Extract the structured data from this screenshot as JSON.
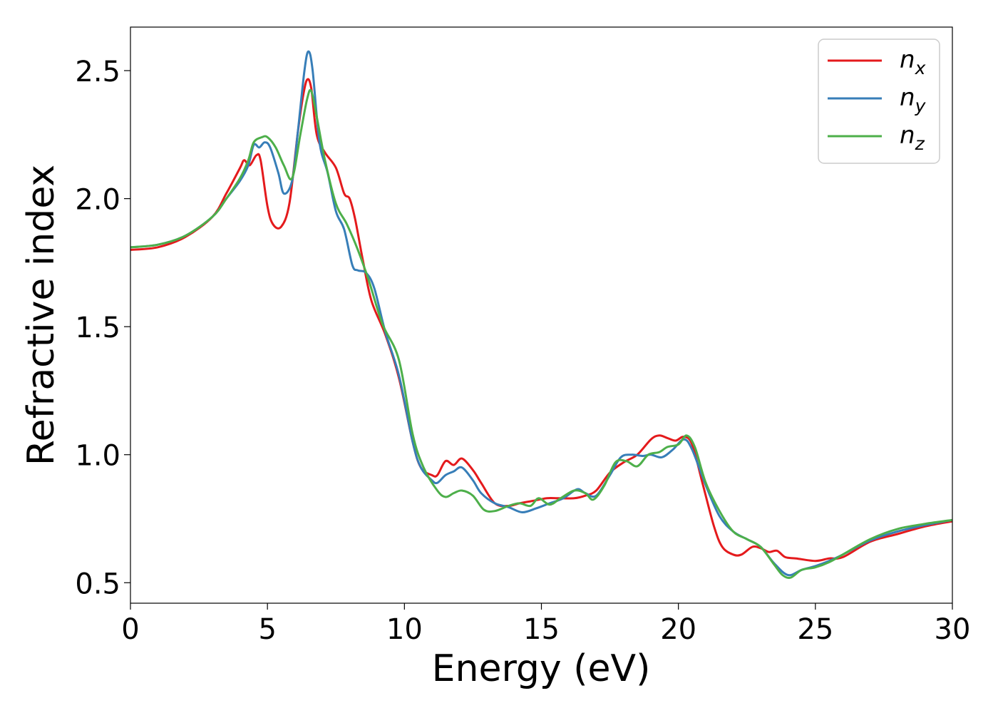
{
  "chart_data": {
    "type": "line",
    "xlabel": "Energy (eV)",
    "ylabel": "Refractive index",
    "xlim": [
      0,
      30
    ],
    "ylim": [
      0.42,
      2.67
    ],
    "xticks": [
      0,
      5,
      10,
      15,
      20,
      25,
      30
    ],
    "yticks": [
      0.5,
      1.0,
      1.5,
      2.0,
      2.5
    ],
    "xtick_labels": [
      "0",
      "5",
      "10",
      "15",
      "20",
      "25",
      "30"
    ],
    "ytick_labels": [
      "0.5",
      "1.0",
      "1.5",
      "2.0",
      "2.5"
    ],
    "grid": false,
    "legend_position": "top-right",
    "series": [
      {
        "name": "n",
        "subscript": "x",
        "color": "#e41a1c",
        "points": [
          [
            0,
            1.8
          ],
          [
            1,
            1.81
          ],
          [
            2,
            1.85
          ],
          [
            3,
            1.93
          ],
          [
            3.5,
            2.02
          ],
          [
            4,
            2.12
          ],
          [
            4.15,
            2.15
          ],
          [
            4.35,
            2.13
          ],
          [
            4.6,
            2.17
          ],
          [
            4.75,
            2.15
          ],
          [
            5.0,
            1.97
          ],
          [
            5.2,
            1.9
          ],
          [
            5.5,
            1.89
          ],
          [
            5.8,
            1.98
          ],
          [
            6.1,
            2.25
          ],
          [
            6.3,
            2.4
          ],
          [
            6.45,
            2.465
          ],
          [
            6.6,
            2.43
          ],
          [
            6.8,
            2.25
          ],
          [
            7.1,
            2.18
          ],
          [
            7.5,
            2.12
          ],
          [
            7.8,
            2.02
          ],
          [
            8.0,
            2.0
          ],
          [
            8.2,
            1.92
          ],
          [
            8.5,
            1.75
          ],
          [
            8.8,
            1.6
          ],
          [
            9.3,
            1.47
          ],
          [
            9.8,
            1.3
          ],
          [
            10.3,
            1.05
          ],
          [
            10.6,
            0.95
          ],
          [
            11.0,
            0.92
          ],
          [
            11.2,
            0.92
          ],
          [
            11.5,
            0.975
          ],
          [
            11.8,
            0.96
          ],
          [
            12.1,
            0.985
          ],
          [
            12.5,
            0.94
          ],
          [
            12.8,
            0.89
          ],
          [
            13.3,
            0.81
          ],
          [
            13.8,
            0.8
          ],
          [
            14.2,
            0.81
          ],
          [
            14.7,
            0.82
          ],
          [
            15.2,
            0.83
          ],
          [
            15.6,
            0.83
          ],
          [
            16.2,
            0.83
          ],
          [
            16.6,
            0.84
          ],
          [
            17.0,
            0.86
          ],
          [
            17.5,
            0.93
          ],
          [
            18.0,
            0.97
          ],
          [
            18.5,
            1.0
          ],
          [
            19.0,
            1.06
          ],
          [
            19.3,
            1.075
          ],
          [
            19.6,
            1.065
          ],
          [
            19.9,
            1.055
          ],
          [
            20.2,
            1.07
          ],
          [
            20.5,
            1.04
          ],
          [
            20.9,
            0.88
          ],
          [
            21.3,
            0.72
          ],
          [
            21.6,
            0.64
          ],
          [
            22.0,
            0.61
          ],
          [
            22.3,
            0.61
          ],
          [
            22.7,
            0.64
          ],
          [
            23.0,
            0.635
          ],
          [
            23.3,
            0.62
          ],
          [
            23.6,
            0.625
          ],
          [
            23.9,
            0.6
          ],
          [
            24.3,
            0.595
          ],
          [
            25.0,
            0.585
          ],
          [
            25.5,
            0.595
          ],
          [
            26.0,
            0.6
          ],
          [
            27.0,
            0.66
          ],
          [
            28.0,
            0.69
          ],
          [
            29.0,
            0.72
          ],
          [
            30.0,
            0.74
          ]
        ]
      },
      {
        "name": "n",
        "subscript": "y",
        "color": "#377eb8",
        "points": [
          [
            0,
            1.81
          ],
          [
            1,
            1.82
          ],
          [
            2,
            1.855
          ],
          [
            3,
            1.93
          ],
          [
            3.5,
            2.0
          ],
          [
            4,
            2.07
          ],
          [
            4.3,
            2.13
          ],
          [
            4.5,
            2.21
          ],
          [
            4.7,
            2.2
          ],
          [
            4.9,
            2.22
          ],
          [
            5.1,
            2.2
          ],
          [
            5.4,
            2.1
          ],
          [
            5.6,
            2.02
          ],
          [
            5.9,
            2.07
          ],
          [
            6.1,
            2.25
          ],
          [
            6.35,
            2.5
          ],
          [
            6.5,
            2.575
          ],
          [
            6.65,
            2.5
          ],
          [
            6.9,
            2.22
          ],
          [
            7.2,
            2.1
          ],
          [
            7.5,
            1.95
          ],
          [
            7.8,
            1.88
          ],
          [
            8.1,
            1.74
          ],
          [
            8.3,
            1.72
          ],
          [
            8.6,
            1.71
          ],
          [
            8.9,
            1.65
          ],
          [
            9.3,
            1.48
          ],
          [
            9.8,
            1.31
          ],
          [
            10.3,
            1.05
          ],
          [
            10.6,
            0.95
          ],
          [
            11.0,
            0.9
          ],
          [
            11.2,
            0.89
          ],
          [
            11.5,
            0.92
          ],
          [
            11.8,
            0.935
          ],
          [
            12.1,
            0.95
          ],
          [
            12.5,
            0.9
          ],
          [
            12.8,
            0.85
          ],
          [
            13.3,
            0.81
          ],
          [
            13.8,
            0.795
          ],
          [
            14.3,
            0.775
          ],
          [
            14.8,
            0.79
          ],
          [
            15.3,
            0.81
          ],
          [
            15.8,
            0.83
          ],
          [
            16.3,
            0.865
          ],
          [
            16.6,
            0.85
          ],
          [
            17.0,
            0.84
          ],
          [
            17.5,
            0.92
          ],
          [
            17.9,
            0.99
          ],
          [
            18.3,
            1.0
          ],
          [
            18.7,
            0.995
          ],
          [
            19.0,
            1.0
          ],
          [
            19.4,
            0.99
          ],
          [
            19.8,
            1.02
          ],
          [
            20.2,
            1.06
          ],
          [
            20.5,
            1.02
          ],
          [
            21.0,
            0.88
          ],
          [
            21.5,
            0.76
          ],
          [
            22.0,
            0.7
          ],
          [
            22.5,
            0.67
          ],
          [
            23.0,
            0.64
          ],
          [
            23.5,
            0.575
          ],
          [
            24.0,
            0.53
          ],
          [
            24.5,
            0.55
          ],
          [
            25.0,
            0.565
          ],
          [
            25.5,
            0.585
          ],
          [
            26.0,
            0.61
          ],
          [
            27.0,
            0.665
          ],
          [
            28.0,
            0.7
          ],
          [
            29.0,
            0.725
          ],
          [
            30.0,
            0.745
          ]
        ]
      },
      {
        "name": "n",
        "subscript": "z",
        "color": "#4daf4a",
        "points": [
          [
            0,
            1.81
          ],
          [
            1,
            1.82
          ],
          [
            2,
            1.855
          ],
          [
            3,
            1.93
          ],
          [
            3.5,
            2.0
          ],
          [
            4,
            2.08
          ],
          [
            4.3,
            2.15
          ],
          [
            4.5,
            2.22
          ],
          [
            4.8,
            2.24
          ],
          [
            5.0,
            2.24
          ],
          [
            5.3,
            2.2
          ],
          [
            5.6,
            2.13
          ],
          [
            5.9,
            2.08
          ],
          [
            6.2,
            2.25
          ],
          [
            6.45,
            2.39
          ],
          [
            6.6,
            2.42
          ],
          [
            6.8,
            2.32
          ],
          [
            7.1,
            2.15
          ],
          [
            7.5,
            1.98
          ],
          [
            7.9,
            1.9
          ],
          [
            8.3,
            1.8
          ],
          [
            8.7,
            1.68
          ],
          [
            9.2,
            1.51
          ],
          [
            9.8,
            1.37
          ],
          [
            10.3,
            1.08
          ],
          [
            10.7,
            0.95
          ],
          [
            11.2,
            0.86
          ],
          [
            11.5,
            0.835
          ],
          [
            11.8,
            0.85
          ],
          [
            12.1,
            0.86
          ],
          [
            12.5,
            0.84
          ],
          [
            12.9,
            0.785
          ],
          [
            13.3,
            0.78
          ],
          [
            13.8,
            0.8
          ],
          [
            14.2,
            0.81
          ],
          [
            14.6,
            0.8
          ],
          [
            14.9,
            0.83
          ],
          [
            15.3,
            0.805
          ],
          [
            15.7,
            0.83
          ],
          [
            16.2,
            0.86
          ],
          [
            16.6,
            0.85
          ],
          [
            16.9,
            0.825
          ],
          [
            17.3,
            0.88
          ],
          [
            17.7,
            0.97
          ],
          [
            18.1,
            0.975
          ],
          [
            18.5,
            0.955
          ],
          [
            18.9,
            1.0
          ],
          [
            19.3,
            1.01
          ],
          [
            19.6,
            1.03
          ],
          [
            20.0,
            1.04
          ],
          [
            20.3,
            1.075
          ],
          [
            20.6,
            1.03
          ],
          [
            21.0,
            0.89
          ],
          [
            21.5,
            0.78
          ],
          [
            22.0,
            0.7
          ],
          [
            22.5,
            0.67
          ],
          [
            23.0,
            0.64
          ],
          [
            23.5,
            0.57
          ],
          [
            23.8,
            0.53
          ],
          [
            24.1,
            0.52
          ],
          [
            24.5,
            0.55
          ],
          [
            25.0,
            0.56
          ],
          [
            25.5,
            0.58
          ],
          [
            26.0,
            0.61
          ],
          [
            27.0,
            0.67
          ],
          [
            28.0,
            0.71
          ],
          [
            29.0,
            0.73
          ],
          [
            30.0,
            0.745
          ]
        ]
      }
    ]
  }
}
